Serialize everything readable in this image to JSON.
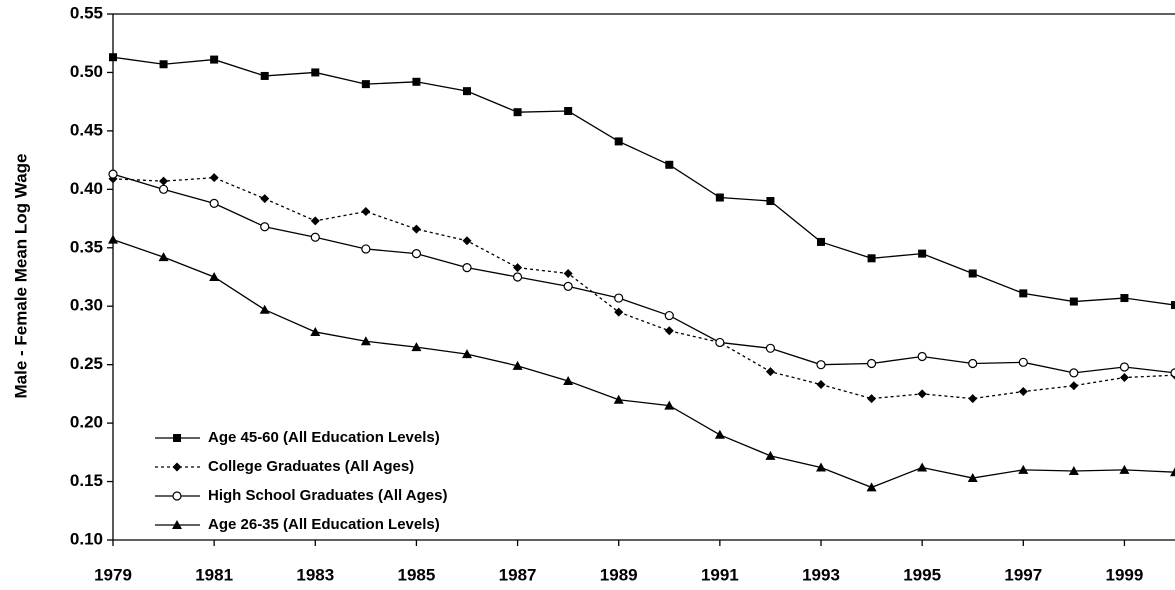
{
  "chart_data": {
    "type": "line",
    "y_label": "Male - Female Mean Log Wage",
    "x": [
      1979,
      1980,
      1981,
      1982,
      1983,
      1984,
      1985,
      1986,
      1987,
      1988,
      1989,
      1990,
      1991,
      1992,
      1993,
      1994,
      1995,
      1996,
      1997,
      1998,
      1999,
      2000
    ],
    "xlim": [
      1979,
      2000
    ],
    "xticks": [
      1979,
      1981,
      1983,
      1985,
      1987,
      1989,
      1991,
      1993,
      1995,
      1997,
      1999
    ],
    "ylim": [
      0.1,
      0.55
    ],
    "yticks": [
      {
        "value": 0.1,
        "label": "0.10"
      },
      0.15,
      {
        "value": 0.2,
        "label": "0.20"
      },
      0.25,
      {
        "value": 0.3,
        "label": "0.30"
      },
      0.35,
      {
        "value": 0.4,
        "label": "0.40"
      },
      0.45,
      {
        "value": 0.5,
        "label": "0.50"
      },
      0.55
    ],
    "legend": "lower-left",
    "series": [
      {
        "name": "Age 45-60 (All Education Levels)",
        "color": "#000000",
        "marker": "square",
        "line_style": "solid",
        "values": [
          0.513,
          0.507,
          0.511,
          0.497,
          0.5,
          0.49,
          0.492,
          0.484,
          0.466,
          0.467,
          0.441,
          0.421,
          0.393,
          0.39,
          0.355,
          0.341,
          0.345,
          0.328,
          0.311,
          0.304,
          0.307,
          0.301
        ]
      },
      {
        "name": "College Graduates (All Ages)",
        "color": "#000000",
        "marker": "diamond",
        "line_style": "dotted",
        "values": [
          0.409,
          0.407,
          0.41,
          0.392,
          0.373,
          0.381,
          0.366,
          0.356,
          0.333,
          0.328,
          0.295,
          0.279,
          0.269,
          0.244,
          0.233,
          0.221,
          0.225,
          0.221,
          0.227,
          0.232,
          0.239,
          0.241
        ]
      },
      {
        "name": "High School Graduates (All Ages)",
        "color": "#000000",
        "marker": "circle",
        "line_style": "solid",
        "values": [
          0.413,
          0.4,
          0.388,
          0.368,
          0.359,
          0.349,
          0.345,
          0.333,
          0.325,
          0.317,
          0.307,
          0.292,
          0.269,
          0.264,
          0.25,
          0.251,
          0.257,
          0.251,
          0.252,
          0.243,
          0.248,
          0.243
        ]
      },
      {
        "name": "Age 26-35 (All Education Levels)",
        "color": "#000000",
        "marker": "triangle",
        "line_style": "solid",
        "values": [
          0.357,
          0.342,
          0.325,
          0.297,
          0.278,
          0.27,
          0.265,
          0.259,
          0.249,
          0.236,
          0.22,
          0.215,
          0.19,
          0.172,
          0.162,
          0.145,
          0.162,
          0.153,
          0.16,
          0.159,
          0.16,
          0.158
        ]
      }
    ]
  }
}
